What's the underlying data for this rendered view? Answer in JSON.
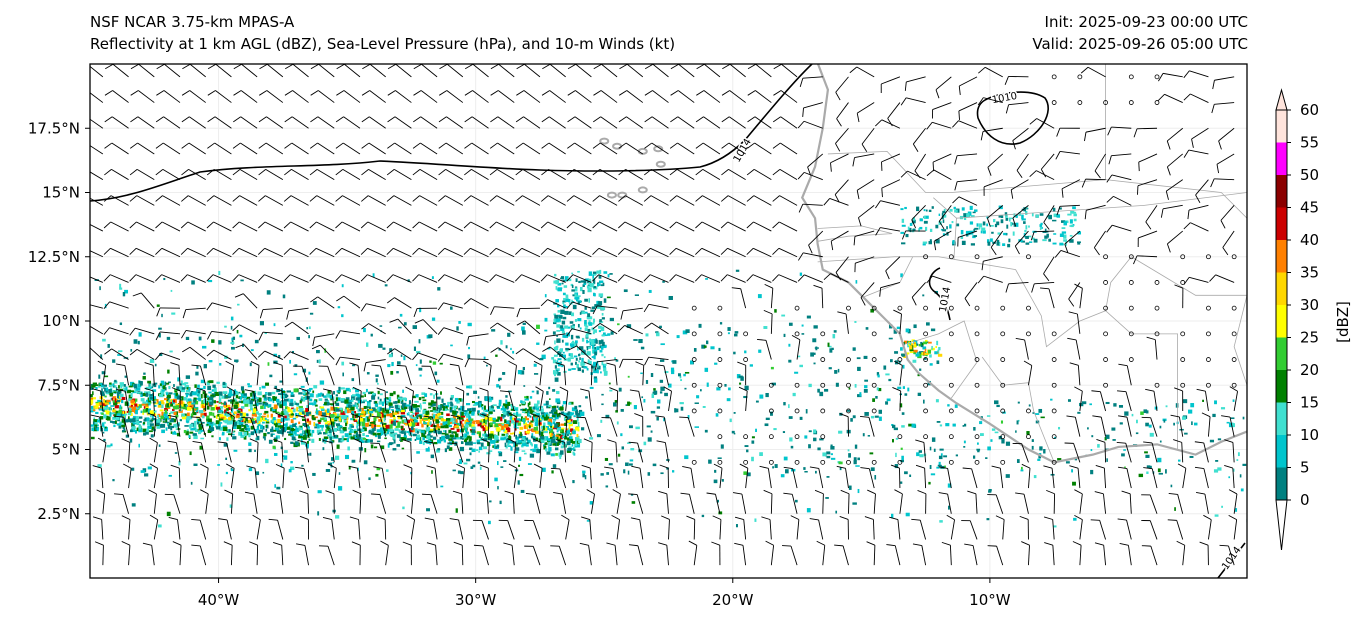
{
  "header": {
    "title": "NSF NCAR 3.75-km MPAS-A",
    "subtitle": "Reflectivity at 1 km AGL (dBZ), Sea-Level Pressure (hPa), and 10-m Winds (kt)",
    "init": "Init: 2025-09-23 00:00 UTC",
    "valid": "Valid: 2025-09-26 05:00 UTC"
  },
  "chart_data": {
    "type": "map",
    "lon_range": [
      -45,
      0
    ],
    "lat_range": [
      0,
      20
    ],
    "x_ticks": [
      {
        "v": -40,
        "label": "40°W"
      },
      {
        "v": -30,
        "label": "30°W"
      },
      {
        "v": -20,
        "label": "20°W"
      },
      {
        "v": -10,
        "label": "10°W"
      }
    ],
    "y_ticks": [
      {
        "v": 2.5,
        "label": "2.5°N"
      },
      {
        "v": 5,
        "label": "5°N"
      },
      {
        "v": 7.5,
        "label": "7.5°N"
      },
      {
        "v": 10,
        "label": "10°N"
      },
      {
        "v": 12.5,
        "label": "12.5°N"
      },
      {
        "v": 15,
        "label": "15°N"
      },
      {
        "v": 17.5,
        "label": "17.5°N"
      }
    ],
    "contour_labels": [
      "1014",
      "1010",
      "1014",
      "1014"
    ],
    "colorbar": {
      "label": "[dBZ]",
      "ticks": [
        "0",
        "5",
        "10",
        "15",
        "20",
        "25",
        "30",
        "35",
        "40",
        "45",
        "50",
        "55",
        "60"
      ],
      "colors": [
        "#008080",
        "#00c5cd",
        "#40e0d0",
        "#008000",
        "#32cd32",
        "#ffff00",
        "#ffd700",
        "#ff8000",
        "#cc0000",
        "#8b0000",
        "#ff00ff",
        "#ffe4dc"
      ]
    }
  }
}
